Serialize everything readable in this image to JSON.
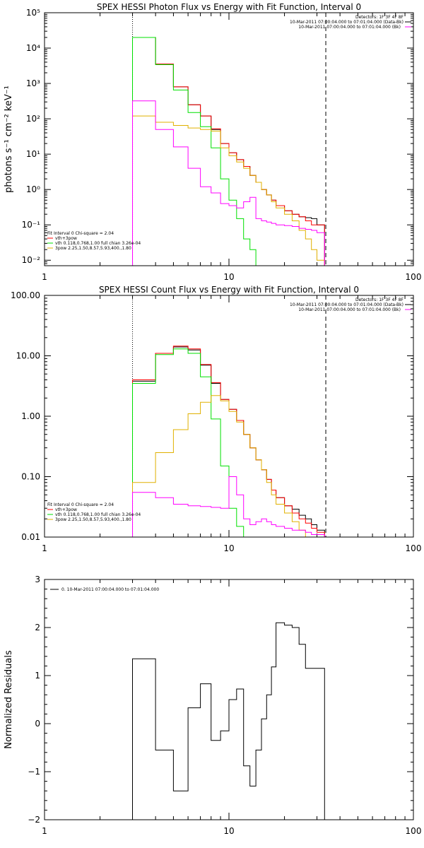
{
  "chart_data": [
    {
      "id": "photon",
      "type": "line",
      "title": "SPEX HESSI Photon Flux vs Energy with Fit Function, Interval 0",
      "xlabel": "",
      "ylabel": "photons s⁻¹ cm⁻² keV⁻¹",
      "xscale": "log",
      "yscale": "log",
      "xlim": [
        1,
        100
      ],
      "ylim": [
        0.007,
        100000
      ],
      "x_ticks": [
        1,
        10,
        100
      ],
      "x_tick_labels": [
        "1",
        "10",
        "100"
      ],
      "y_ticks": [
        0.01,
        0.1,
        1,
        10,
        100,
        1000,
        10000,
        100000
      ],
      "y_tick_labels": [
        "10⁻²",
        "10⁻¹",
        "10⁰",
        "10¹",
        "10²",
        "10³",
        "10⁴",
        "10⁵"
      ],
      "vlines": [
        {
          "x": 3,
          "style": "dotted"
        },
        {
          "x": 33.5,
          "style": "dashed"
        }
      ],
      "legend_topright": [
        {
          "text": "Detectors: 1F 3F 4F 8F",
          "color": "#000000"
        },
        {
          "text": "10-Mar-2011 07:00:04.000 to 07:01:04.000 (Data-Bk)",
          "color": "#000000"
        },
        {
          "text": "10-Mar-2011 07:00:04.000 to 07:01:04.000 (Bk)",
          "color": "#ff00ff"
        }
      ],
      "legend_bottomleft": [
        {
          "text": "Fit Interval 0   Chi-square = 2.04",
          "color": "#000000"
        },
        {
          "text": "vth+3pow",
          "color": "#ff0000"
        },
        {
          "text": "vth 0.118,0.768,1.00  full chian 3.26e-04",
          "color": "#00e000"
        },
        {
          "text": "3pow 2.25,1.50,8.57,5.93,400.,1.80",
          "color": "#e0b000"
        }
      ],
      "edges": [
        3,
        4,
        5,
        6,
        7,
        8,
        9,
        10,
        11,
        12,
        13,
        14,
        15,
        16,
        17,
        18,
        20,
        22,
        24,
        26,
        28,
        30,
        33
      ],
      "series": [
        {
          "color": "#000000",
          "values": [
            20000,
            3500,
            800,
            250,
            120,
            50,
            20,
            11,
            7,
            4.5,
            2.5,
            1.6,
            1,
            0.7,
            0.5,
            0.35,
            0.25,
            0.2,
            0.17,
            0.16,
            0.15,
            0.1
          ]
        },
        {
          "color": "#ff0000",
          "values": [
            20000,
            3500,
            800,
            250,
            120,
            52,
            20,
            11,
            7,
            4.5,
            2.5,
            1.6,
            1,
            0.7,
            0.5,
            0.35,
            0.25,
            0.2,
            0.17,
            0.13,
            0.1,
            0.1
          ]
        },
        {
          "color": "#00e000",
          "values": [
            20000,
            3400,
            650,
            150,
            60,
            15,
            2,
            0.5,
            0.15,
            0.04,
            0.02,
            0.005
          ]
        },
        {
          "color": "#e0b000",
          "values": [
            120,
            80,
            65,
            55,
            50,
            45,
            15,
            9,
            6,
            4,
            2.5,
            1.6,
            1,
            0.7,
            0.45,
            0.3,
            0.2,
            0.13,
            0.07,
            0.04,
            0.02,
            0.01
          ]
        },
        {
          "color": "#ff00ff",
          "values": [
            320,
            50,
            16,
            4,
            1.2,
            0.8,
            0.4,
            0.35,
            0.3,
            0.45,
            0.6,
            0.15,
            0.13,
            0.12,
            0.11,
            0.1,
            0.095,
            0.09,
            0.08,
            0.075,
            0.07,
            0.06
          ]
        }
      ]
    },
    {
      "id": "count",
      "type": "line",
      "title": "SPEX HESSI Count Flux vs Energy with Fit Function, Interval 0",
      "xlabel": "",
      "ylabel": "",
      "xscale": "log",
      "yscale": "log",
      "xlim": [
        1,
        100
      ],
      "ylim": [
        0.01,
        100
      ],
      "x_ticks": [
        1,
        10,
        100
      ],
      "x_tick_labels": [
        "1",
        "10",
        "100"
      ],
      "y_ticks": [
        0.01,
        0.1,
        1,
        10,
        100
      ],
      "y_tick_labels": [
        "0.01",
        "0.10",
        "1.00",
        "10.00",
        "100.00"
      ],
      "vlines": [
        {
          "x": 3,
          "style": "dotted"
        },
        {
          "x": 33.5,
          "style": "dashed"
        }
      ],
      "legend_topright": [
        {
          "text": "Detectors: 1F 3F 4F 8F",
          "color": "#000000"
        },
        {
          "text": "10-Mar-2011 07:00:04.000 to 07:01:04.000 (Data-Bk)",
          "color": "#000000"
        },
        {
          "text": "10-Mar-2011 07:00:04.000 to 07:01:04.000 (Bk)",
          "color": "#ff00ff"
        }
      ],
      "legend_bottomleft": [
        {
          "text": "Fit Interval 0   Chi-square = 2.04",
          "color": "#000000"
        },
        {
          "text": "vth+3pow",
          "color": "#ff0000"
        },
        {
          "text": "vth 0.118,0.768,1.00  full chian 3.26e-04",
          "color": "#00e000"
        },
        {
          "text": "3pow 2.25,1.50,8.57,5.93,400.,1.80",
          "color": "#e0b000"
        }
      ],
      "edges": [
        3,
        4,
        5,
        6,
        7,
        8,
        9,
        10,
        11,
        12,
        13,
        14,
        15,
        16,
        17,
        18,
        20,
        22,
        24,
        26,
        28,
        30,
        33
      ],
      "series": [
        {
          "color": "#000000",
          "values": [
            3.8,
            11,
            14,
            12.5,
            7,
            3.5,
            1.9,
            1.3,
            0.85,
            0.5,
            0.3,
            0.19,
            0.13,
            0.09,
            0.06,
            0.045,
            0.033,
            0.029,
            0.023,
            0.02,
            0.016,
            0.013
          ]
        },
        {
          "color": "#ff0000",
          "values": [
            4,
            11,
            14.5,
            13,
            7.2,
            3.6,
            1.9,
            1.3,
            0.85,
            0.5,
            0.3,
            0.19,
            0.13,
            0.09,
            0.06,
            0.045,
            0.033,
            0.025,
            0.02,
            0.017,
            0.014,
            0.012
          ]
        },
        {
          "color": "#00e000",
          "values": [
            3.5,
            10.5,
            13,
            11,
            4.5,
            0.9,
            0.15,
            0.03,
            0.015,
            0.008
          ]
        },
        {
          "color": "#e0b000",
          "values": [
            0.08,
            0.25,
            0.6,
            1.1,
            1.7,
            2.2,
            1.8,
            1.2,
            0.8,
            0.5,
            0.3,
            0.19,
            0.13,
            0.08,
            0.05,
            0.035,
            0.025,
            0.018,
            0.013,
            0.01,
            0.009,
            0.009
          ]
        },
        {
          "color": "#ff00ff",
          "values": [
            0.055,
            0.045,
            0.035,
            0.033,
            0.032,
            0.031,
            0.03,
            0.1,
            0.05,
            0.02,
            0.016,
            0.018,
            0.02,
            0.018,
            0.016,
            0.015,
            0.014,
            0.013,
            0.013,
            0.012,
            0.011,
            0.011
          ]
        }
      ]
    },
    {
      "id": "resid",
      "type": "line",
      "title": "",
      "xlabel": "",
      "ylabel": "Normalized Residuals",
      "xscale": "log",
      "yscale": "linear",
      "xlim": [
        1,
        100
      ],
      "ylim": [
        -2,
        3
      ],
      "x_ticks": [
        1,
        10,
        100
      ],
      "x_tick_labels": [
        "1",
        "10",
        "100"
      ],
      "y_ticks": [
        -2,
        -1,
        0,
        1,
        2,
        3
      ],
      "y_tick_labels": [
        "−2",
        "−1",
        "0",
        "1",
        "2",
        "3"
      ],
      "legend_topleft": [
        {
          "text": "0. 10-Mar-2011 07:00:04.000 to 07:01:04.000",
          "color": "#000000"
        }
      ],
      "edges": [
        3,
        4,
        5,
        6,
        7,
        8,
        9,
        10,
        11,
        12,
        13,
        14,
        15,
        16,
        17,
        18,
        20,
        22,
        24,
        26,
        28,
        30,
        33
      ],
      "series": [
        {
          "color": "#000000",
          "values": [
            1.35,
            -0.55,
            -1.4,
            0.33,
            0.83,
            -0.35,
            -0.15,
            0.5,
            0.72,
            -0.88,
            -1.3,
            -0.55,
            0.1,
            0.6,
            1.18,
            2.1,
            2.05,
            2.0,
            1.65,
            1.15,
            1.15,
            1.15
          ]
        }
      ]
    }
  ]
}
